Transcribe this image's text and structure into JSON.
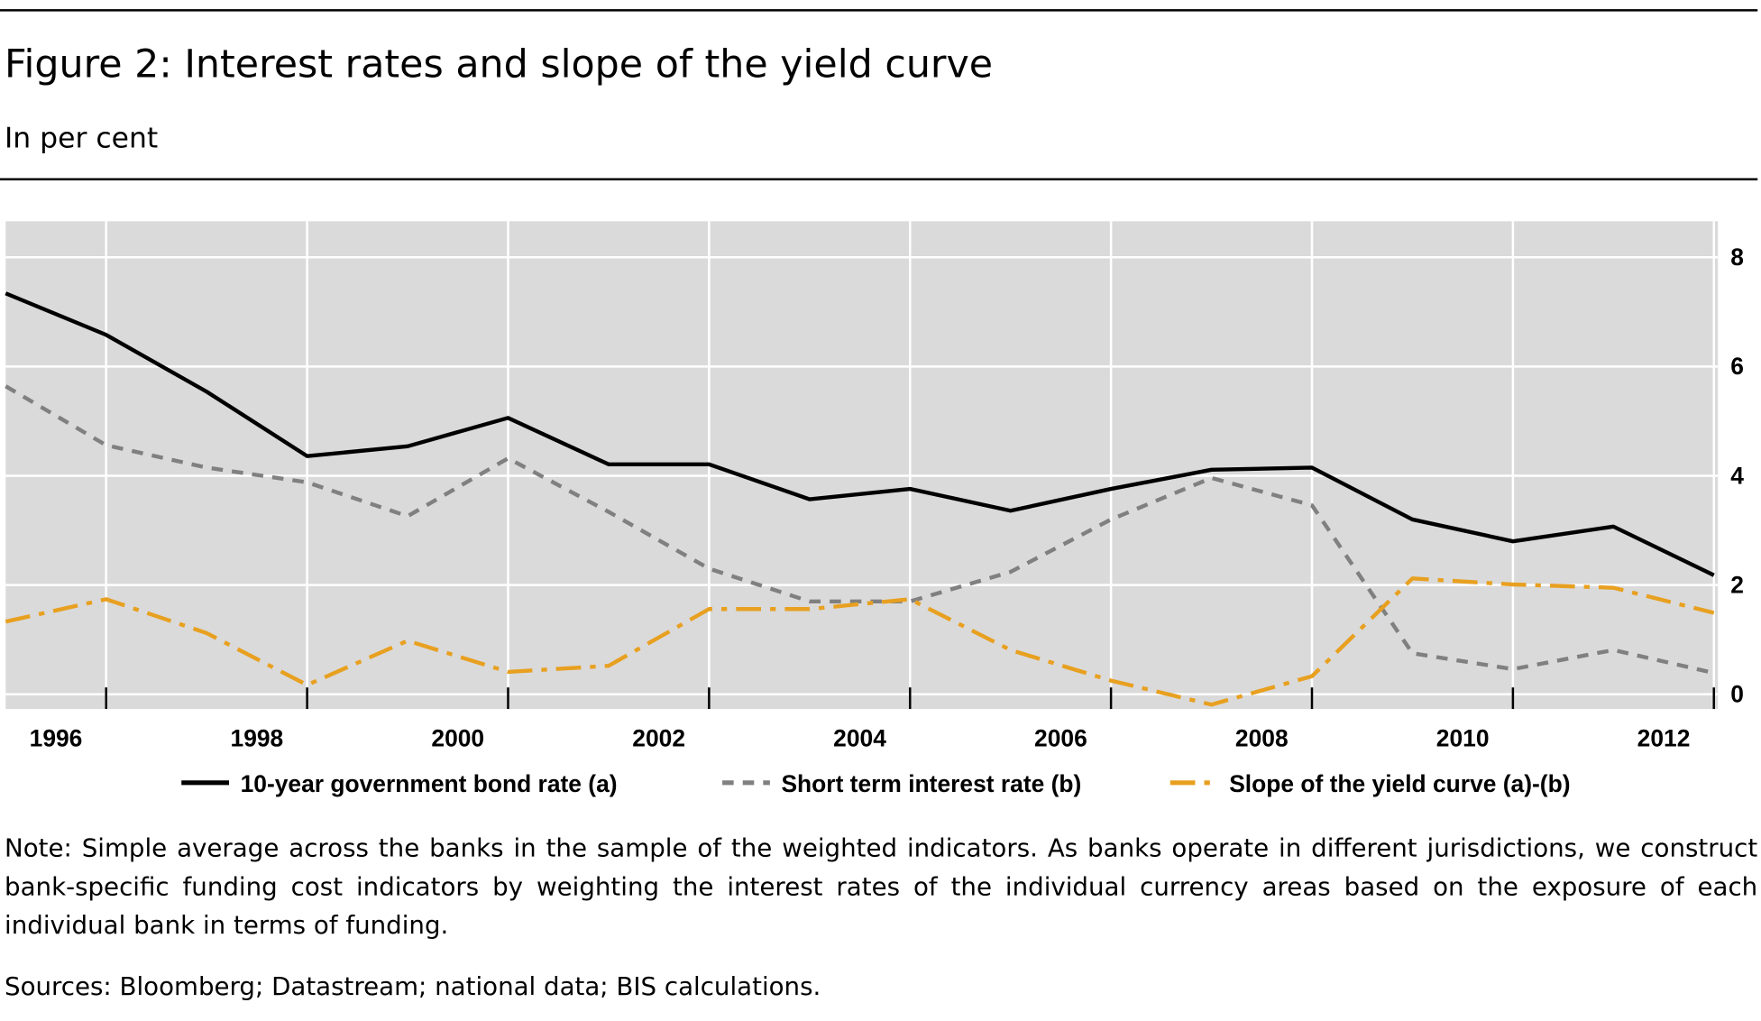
{
  "header": {
    "title": "Figure 2: Interest rates and slope of the yield curve",
    "subtitle": "In per cent"
  },
  "chart_data": {
    "type": "line",
    "x": [
      1996,
      1997,
      1998,
      1999,
      2000,
      2001,
      2002,
      2003,
      2004,
      2005,
      2006,
      2007,
      2008,
      2009,
      2010,
      2011,
      2012,
      2013
    ],
    "series": [
      {
        "name": "10-year government bond rate (a)",
        "color": "#000000",
        "style": "solid",
        "values": [
          7.34,
          6.58,
          5.54,
          4.36,
          4.54,
          5.06,
          4.21,
          4.21,
          3.57,
          3.76,
          3.36,
          3.76,
          4.11,
          4.15,
          3.2,
          2.8,
          3.07,
          2.18
        ]
      },
      {
        "name": "Short term interest rate (b)",
        "color": "#808080",
        "style": "dashed",
        "values": [
          5.64,
          4.56,
          4.15,
          3.88,
          3.26,
          4.32,
          3.34,
          2.3,
          1.7,
          1.7,
          2.24,
          3.2,
          3.96,
          3.46,
          0.75,
          0.46,
          0.81,
          0.39
        ]
      },
      {
        "name": "Slope of the yield curve (a)-(b)",
        "color": "#e8a020",
        "style": "dashdot",
        "values": [
          1.33,
          1.74,
          1.12,
          0.17,
          0.98,
          0.41,
          0.52,
          1.56,
          1.56,
          1.74,
          0.81,
          0.25,
          -0.19,
          0.33,
          2.12,
          2.01,
          1.95,
          1.49
        ]
      }
    ],
    "xlim": [
      1996,
      2013.04
    ],
    "xticks": [
      {
        "value": 1996.5,
        "label": "1996"
      },
      {
        "value": 1998.5,
        "label": "1998"
      },
      {
        "value": 2000.5,
        "label": "2000"
      },
      {
        "value": 2002.5,
        "label": "2002"
      },
      {
        "value": 2004.5,
        "label": "2004"
      },
      {
        "value": 2006.5,
        "label": "2006"
      },
      {
        "value": 2008.5,
        "label": "2008"
      },
      {
        "value": 2010.5,
        "label": "2010"
      },
      {
        "value": 2012.5,
        "label": "2012"
      }
    ],
    "xgrid": [
      1997,
      1999,
      2001,
      2003,
      2005,
      2007,
      2009,
      2011,
      2013
    ],
    "ylim": [
      -0.27,
      8.66
    ],
    "yticks": [
      0,
      2,
      4,
      6,
      8
    ],
    "grid": true,
    "legend": "bottom"
  },
  "note": "Note: Simple average across the banks in the sample of the weighted indicators. As banks operate in different jurisdictions, we construct bank-specific funding cost indicators by weighting the interest rates of the individual currency areas based on the exposure of each individual bank in terms of funding.",
  "sources": "Sources: Bloomberg; Datastream; national data; BIS calculations."
}
